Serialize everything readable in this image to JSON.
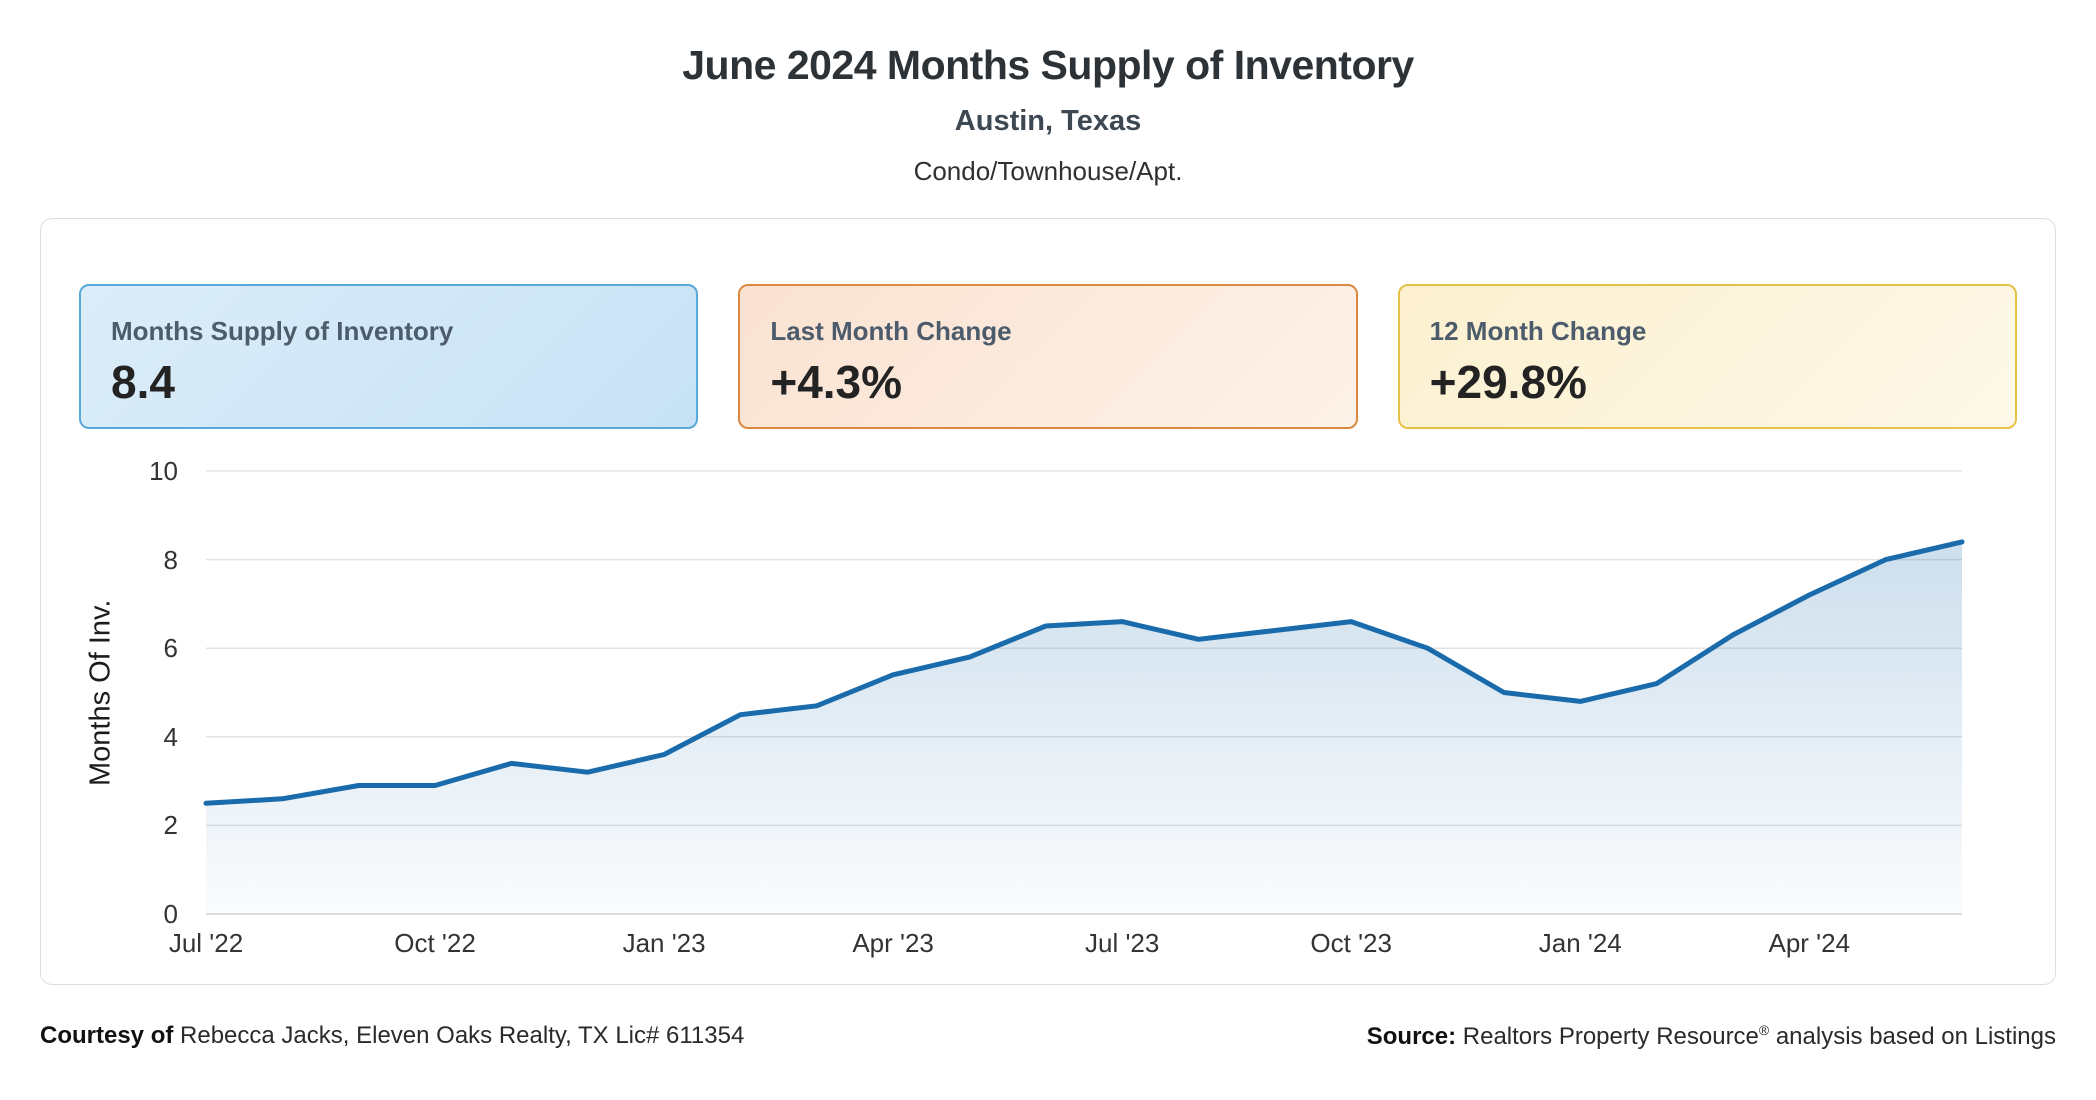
{
  "page": {
    "title": "June 2024 Months Supply of Inventory",
    "subtitle": "Austin, Texas",
    "property_type": "Condo/Townhouse/Apt."
  },
  "stat_cards": [
    {
      "label": "Months Supply of Inventory",
      "value": "8.4",
      "accent_color": "#58a8d8"
    },
    {
      "label": "Last Month Change",
      "value": "+4.3%",
      "accent_color": "#dc8a40"
    },
    {
      "label": "12 Month Change",
      "value": "+29.8%",
      "accent_color": "#e4c246"
    }
  ],
  "chart_data": {
    "type": "area",
    "title": "",
    "ylabel": "Months Of Inv.",
    "xlabel": "",
    "x": [
      "Jul '22",
      "Aug '22",
      "Sep '22",
      "Oct '22",
      "Nov '22",
      "Dec '22",
      "Jan '23",
      "Feb '23",
      "Mar '23",
      "Apr '23",
      "May '23",
      "Jun '23",
      "Jul '23",
      "Aug '23",
      "Sep '23",
      "Oct '23",
      "Nov '23",
      "Dec '23",
      "Jan '24",
      "Feb '24",
      "Mar '24",
      "Apr '24",
      "May '24",
      "Jun '24"
    ],
    "values": [
      2.5,
      2.6,
      2.9,
      2.9,
      3.4,
      3.2,
      3.6,
      4.5,
      4.7,
      5.4,
      5.8,
      6.5,
      6.6,
      6.2,
      6.4,
      6.6,
      6.0,
      5.0,
      4.8,
      5.2,
      6.3,
      7.2,
      8.0,
      8.4
    ],
    "ylim": [
      0,
      10
    ],
    "yticks": [
      0,
      2,
      4,
      6,
      8,
      10
    ],
    "x_tick_every": 3,
    "grid": "horizontal",
    "legend": "none",
    "line_color": "#1a6bab",
    "area_top_color": "rgba(26,107,171,0.22)",
    "area_bottom_color": "rgba(26,107,171,0.02)",
    "grid_color": "#e3e3e3",
    "baseline_color": "#d2d2d2"
  },
  "footer": {
    "courtesy_label": "Courtesy of",
    "courtesy_text": "Rebecca Jacks, Eleven Oaks Realty, TX Lic# 611354",
    "source_label": "Source:",
    "source_text_pre": "Realtors Property Resource",
    "source_reg_mark": "®",
    "source_text_post": "analysis based on Listings"
  }
}
